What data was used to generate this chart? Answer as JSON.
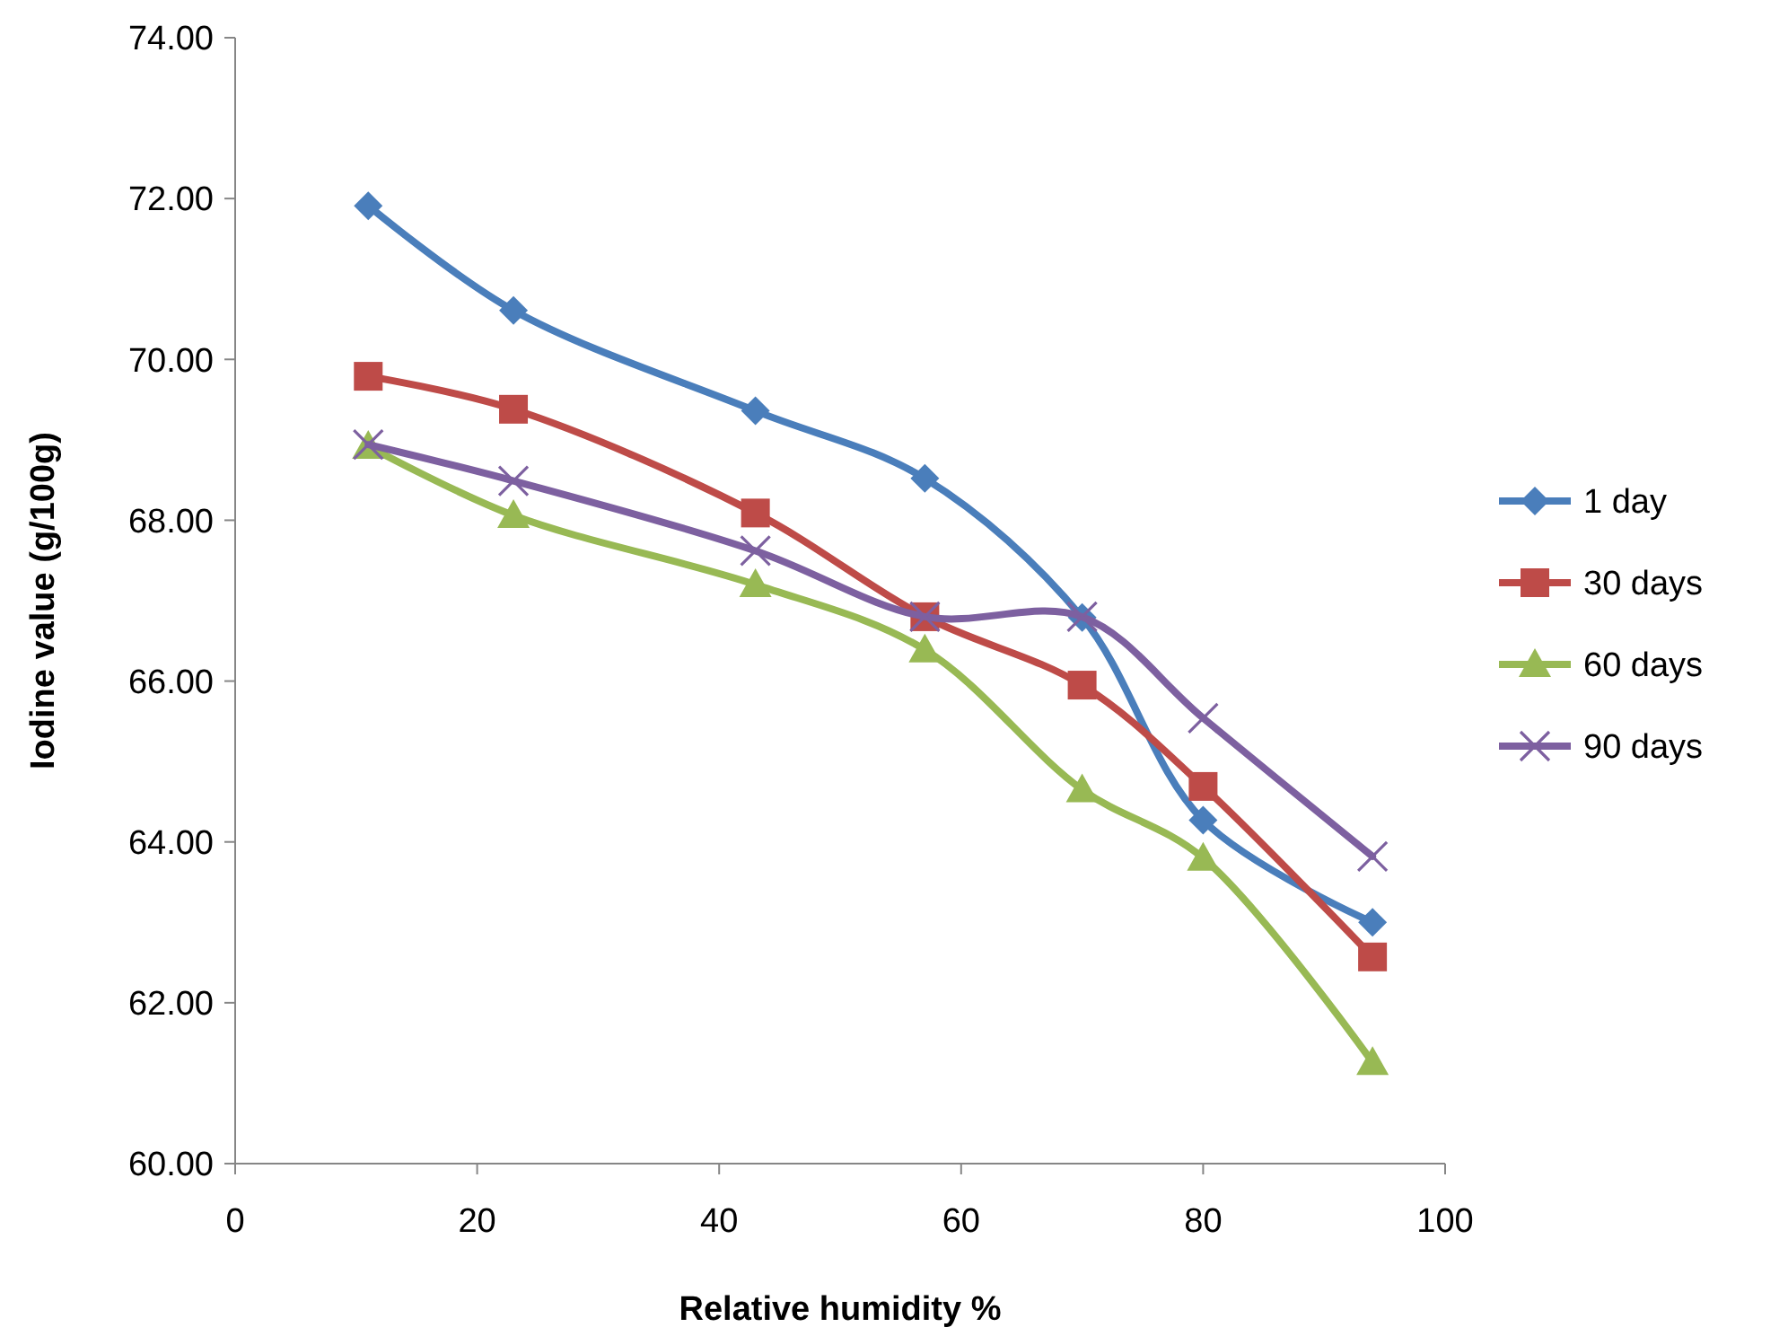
{
  "chart_data": {
    "type": "line",
    "xlabel": "Relative humidity %",
    "ylabel": "Iodine value (g/100g)",
    "x": [
      11,
      23,
      43,
      57,
      70,
      80,
      94
    ],
    "xlim": [
      0,
      100
    ],
    "xticks": [
      0,
      20,
      40,
      60,
      80,
      100
    ],
    "ylim": [
      60,
      74
    ],
    "yticks": [
      {
        "value": 60,
        "label": "60.00"
      },
      {
        "value": 62,
        "label": "62.00"
      },
      {
        "value": 64,
        "label": "64.00"
      },
      {
        "value": 66,
        "label": "66.00"
      },
      {
        "value": 68,
        "label": "68.00"
      },
      {
        "value": 70,
        "label": "70.00"
      },
      {
        "value": 72,
        "label": "72.00"
      },
      {
        "value": 74,
        "label": "74.00"
      }
    ],
    "grid": false,
    "legend": "right",
    "line_style": "solid",
    "series": [
      {
        "name": "1 day",
        "color": "#4a7ebb",
        "marker": "diamond",
        "values": [
          71.91,
          70.61,
          69.36,
          68.52,
          66.79,
          64.27,
          63.0
        ]
      },
      {
        "name": "30 days",
        "color": "#be4b48",
        "marker": "square",
        "values": [
          69.79,
          69.38,
          68.09,
          66.8,
          65.95,
          64.69,
          62.57
        ]
      },
      {
        "name": "60 days",
        "color": "#98b954",
        "marker": "triangle",
        "values": [
          68.92,
          68.06,
          67.2,
          66.39,
          64.65,
          63.8,
          61.26
        ]
      },
      {
        "name": "90 days",
        "color": "#7d60a0",
        "marker": "cross",
        "values": [
          68.94,
          68.49,
          67.62,
          66.8,
          66.8,
          65.54,
          63.82
        ]
      }
    ]
  }
}
